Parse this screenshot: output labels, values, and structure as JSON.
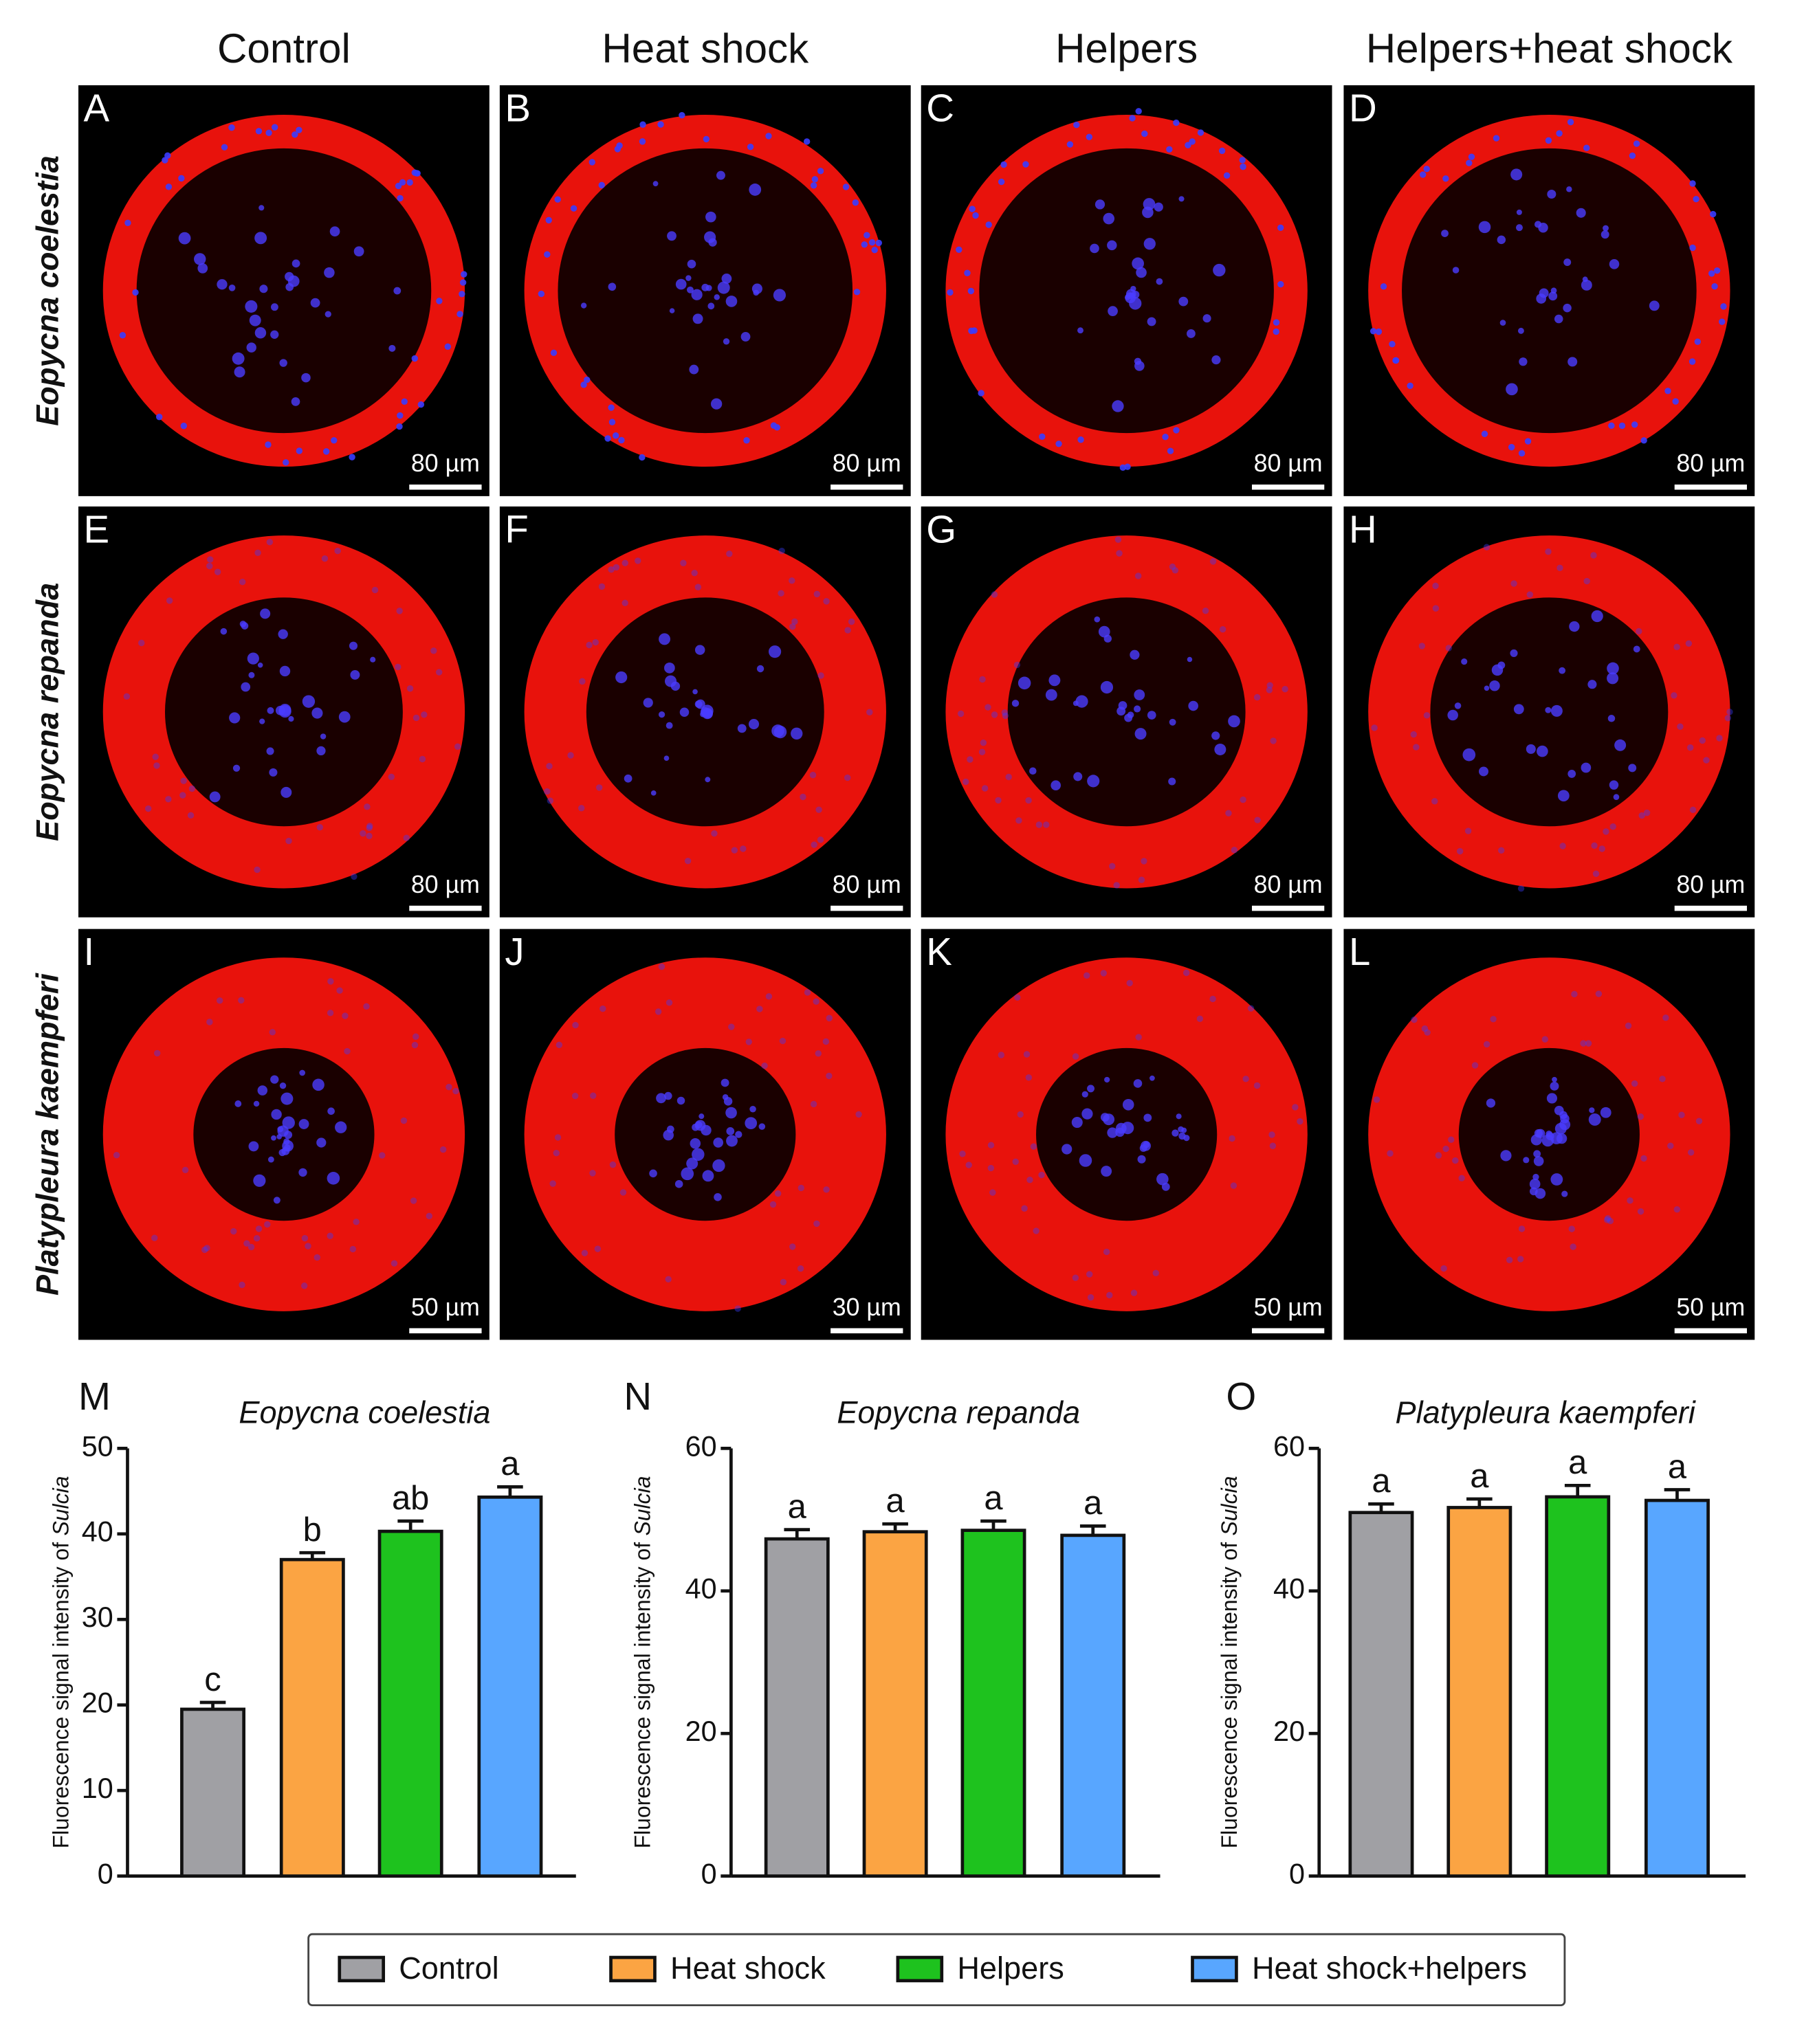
{
  "columns": [
    "Control",
    "Heat shock",
    "Helpers",
    "Helpers+heat shock"
  ],
  "rows": [
    "Eopycna coelestia",
    "Eopycna repanda",
    "Platypleura kaempferi"
  ],
  "panels": [
    {
      "letter": "A",
      "scale": "80 µm"
    },
    {
      "letter": "B",
      "scale": "80 µm"
    },
    {
      "letter": "C",
      "scale": "80 µm"
    },
    {
      "letter": "D",
      "scale": "80 µm"
    },
    {
      "letter": "E",
      "scale": "80 µm"
    },
    {
      "letter": "F",
      "scale": "80 µm"
    },
    {
      "letter": "G",
      "scale": "80 µm"
    },
    {
      "letter": "H",
      "scale": "80 µm"
    },
    {
      "letter": "I",
      "scale": "50 µm"
    },
    {
      "letter": "J",
      "scale": "30 µm"
    },
    {
      "letter": "K",
      "scale": "50 µm"
    },
    {
      "letter": "L",
      "scale": "50 µm"
    }
  ],
  "chart_data": [
    {
      "type": "bar",
      "panel": "M",
      "title": "Eopycna coelestia",
      "ylabel": {
        "text": "Fluorescence signal intensity of",
        "italic": "Sulcia"
      },
      "values": [
        19.5,
        37,
        40.3,
        44.3
      ],
      "errors": [
        0.8,
        0.8,
        1.2,
        1.2
      ],
      "annotations": [
        "c",
        "b",
        "ab",
        "a"
      ],
      "colors": [
        "#a0a0a4",
        "#fba443",
        "#1ec21e",
        "#58a6ff"
      ],
      "ylim": [
        0,
        50
      ],
      "yticks": [
        0,
        10,
        20,
        30,
        40,
        50
      ]
    },
    {
      "type": "bar",
      "panel": "N",
      "title": "Eopycna repanda",
      "ylabel": {
        "text": "Fluorescence signal intensity of",
        "italic": "Sulcia"
      },
      "values": [
        47.3,
        48.3,
        48.5,
        47.8
      ],
      "errors": [
        1.3,
        1.1,
        1.3,
        1.3
      ],
      "annotations": [
        "a",
        "a",
        "a",
        "a"
      ],
      "colors": [
        "#a0a0a4",
        "#fba443",
        "#1ec21e",
        "#58a6ff"
      ],
      "ylim": [
        0,
        60
      ],
      "yticks": [
        0,
        20,
        40,
        60
      ]
    },
    {
      "type": "bar",
      "panel": "O",
      "title": "Platypleura kaempferi",
      "ylabel": {
        "text": "Fluorescence signal intensity of",
        "italic": "Sulcia"
      },
      "values": [
        51,
        51.7,
        53.2,
        52.7
      ],
      "errors": [
        1.2,
        1.2,
        1.6,
        1.5
      ],
      "annotations": [
        "a",
        "a",
        "a",
        "a"
      ],
      "colors": [
        "#a0a0a4",
        "#fba443",
        "#1ec21e",
        "#58a6ff"
      ],
      "ylim": [
        0,
        60
      ],
      "yticks": [
        0,
        20,
        40,
        60
      ]
    }
  ],
  "legend": [
    {
      "name": "Control",
      "color": "#a0a0a4"
    },
    {
      "name": "Heat shock",
      "color": "#fba443"
    },
    {
      "name": "Helpers",
      "color": "#1ec21e"
    },
    {
      "name": "Heat shock+helpers",
      "color": "#58a6ff"
    }
  ]
}
